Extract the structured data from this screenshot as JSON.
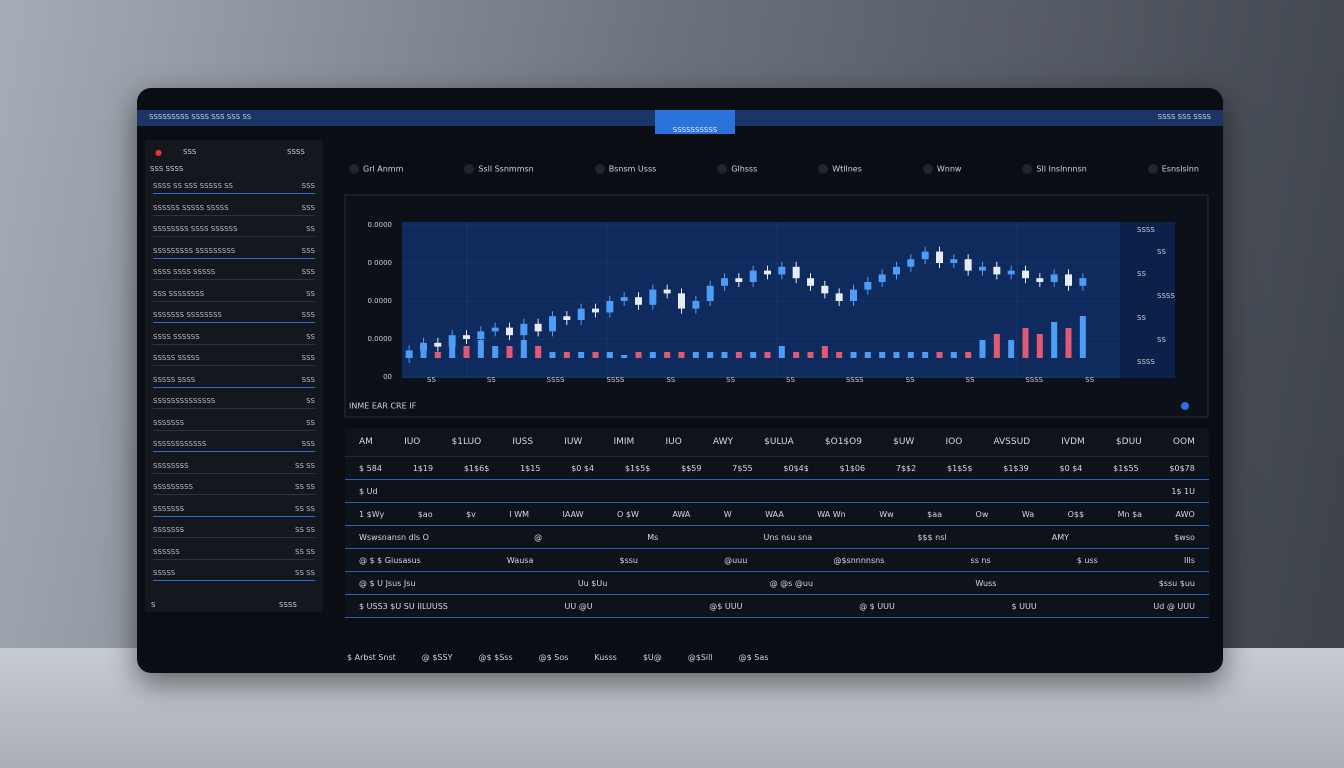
{
  "topbar": {
    "left": "SSSSSSSSS SSSS SSS SSS SS",
    "tab": "SSSSSSSSSS",
    "right": "SSSS SSS SSSS"
  },
  "sidebar": {
    "header": [
      "SSS",
      "SSSS"
    ],
    "subheader": "SSS SSSS",
    "items": [
      {
        "left": "SSSS SS SSS SSSSS SS",
        "right": "SSS"
      },
      {
        "left": "SSSSSS SSSSS SSSSS",
        "right": "SSS"
      },
      {
        "left": "SSSSSSSS SSSS SSSSSS",
        "right": "SS"
      },
      {
        "left": "SSSSSSSSS SSSSSSSSS",
        "right": "SSS"
      },
      {
        "left": "SSSS SSSS SSSSS",
        "right": "SSS"
      },
      {
        "left": "SSS SSSSSSSS",
        "right": "SS"
      },
      {
        "left": "SSSSSSS SSSSSSSS",
        "right": "SSS"
      },
      {
        "left": "SSSS SSSSSS",
        "right": "SS"
      },
      {
        "left": "SSSSS SSSSS",
        "right": "SSS"
      },
      {
        "left": "SSSSS SSSS",
        "right": "SSS"
      },
      {
        "left": "SSSSSSSSSSSSSS",
        "right": "SS"
      },
      {
        "left": "SSSSSSS",
        "right": "SS"
      },
      {
        "left": "SSSSSSSSSSSS",
        "right": "SSS"
      },
      {
        "left": "SSSSSSSS",
        "right": "SS SS"
      },
      {
        "left": "SSSSSSSSS",
        "right": "SS SS"
      },
      {
        "left": "SSSSSSS",
        "right": "SS SS"
      },
      {
        "left": "SSSSSSS",
        "right": "SS SS"
      },
      {
        "left": "SSSSSS",
        "right": "SS SS"
      },
      {
        "left": "SSSSS",
        "right": "SS SS"
      }
    ],
    "footer": [
      "S",
      "SSSS"
    ]
  },
  "toolbar": [
    "Grl Anmm",
    "Ssll Ssnmmsn",
    "Bsnsm Usss",
    "Glhsss",
    "Wtllnes",
    "Wnnw",
    "Sll Inslnnnsn",
    "Esnslslnn"
  ],
  "chart_subtitle": "INME EAR CRE IF",
  "chart_data": {
    "type": "candlestick",
    "ylim": [
      0,
      4
    ],
    "yticks": [
      {
        "value": 0,
        "label": "00"
      },
      {
        "value": 1,
        "label": "0.0000"
      },
      {
        "value": 2,
        "label": "0.0000"
      },
      {
        "value": 3,
        "label": "0 0000"
      },
      {
        "value": 4,
        "label": "0.0000"
      }
    ],
    "right_labels": [
      "SSSS",
      "SS",
      "SS",
      "SSSS",
      "SS",
      "SS",
      "SSSS"
    ],
    "x_labels": [
      "SS",
      "SS",
      "SSSS",
      "SSSS",
      "SS",
      "SS",
      "SS",
      "SSSS",
      "SS",
      "SS",
      "SSSS",
      "SS"
    ],
    "open": [
      0.5,
      0.7,
      0.9,
      0.8,
      1.1,
      1.0,
      1.2,
      1.3,
      1.1,
      1.4,
      1.2,
      1.6,
      1.5,
      1.8,
      1.7,
      2.0,
      2.1,
      1.9,
      2.3,
      2.2,
      1.8,
      2.0,
      2.4,
      2.6,
      2.5,
      2.8,
      2.7,
      2.9,
      2.6,
      2.4,
      2.2,
      2.0,
      2.3,
      2.5,
      2.7,
      2.9,
      3.1,
      3.3,
      3.0,
      3.1,
      2.8,
      2.9,
      2.7,
      2.8,
      2.6,
      2.5,
      2.7,
      2.4
    ],
    "close": [
      0.7,
      0.9,
      0.8,
      1.1,
      1.0,
      1.2,
      1.3,
      1.1,
      1.4,
      1.2,
      1.6,
      1.5,
      1.8,
      1.7,
      2.0,
      2.1,
      1.9,
      2.3,
      2.2,
      1.8,
      2.0,
      2.4,
      2.6,
      2.5,
      2.8,
      2.7,
      2.9,
      2.6,
      2.4,
      2.2,
      2.0,
      2.3,
      2.5,
      2.7,
      2.9,
      3.1,
      3.3,
      3.0,
      3.1,
      2.8,
      2.9,
      2.7,
      2.8,
      2.6,
      2.5,
      2.7,
      2.4,
      2.6
    ],
    "volume": [
      1,
      2,
      1,
      3,
      2,
      3,
      2,
      2,
      3,
      2,
      1,
      1,
      1,
      1,
      1,
      0.5,
      1,
      1,
      1,
      1,
      1,
      1,
      1,
      1,
      1,
      1,
      2,
      1,
      1,
      2,
      1,
      1,
      1,
      1,
      1,
      1,
      1,
      1,
      1,
      1,
      3,
      4,
      3,
      5,
      4,
      6,
      5,
      7
    ],
    "y2lim": [
      0,
      10
    ],
    "up_color": "#4d9cf5",
    "down_color": "#e6ecf5",
    "volume_down_color": "#e05a78"
  },
  "table": {
    "header": [
      "AM",
      "IUO",
      "$1LUO",
      "IUSS",
      "IUW",
      "IMIM",
      "IUO",
      "AWY",
      "$ULUA",
      "$O1$O9",
      "$UW",
      "IOO",
      "AVSSUD",
      "IVDM",
      "$DUU",
      "OOM"
    ],
    "rows": [
      [
        "$ 584",
        "1$19",
        "$1$6$",
        "1$15",
        "$0 $4",
        "$1$5$",
        "$$59",
        "7$55",
        "$0$4$",
        "$1$06",
        "7$$2",
        "$1$5$",
        "$1$39",
        "$0 $4",
        "$1$55",
        "$0$78"
      ],
      [
        "$ Ud",
        "1$ 1U"
      ],
      [
        "1 $Wy",
        "$ao",
        "$v",
        "I WM",
        "IAAW",
        "O $W",
        "AWA",
        "W",
        "WAA",
        "WA Wn",
        "Ww",
        "$aa",
        "Ow",
        "Wa",
        "O$$",
        "Mn $a",
        "AWO"
      ],
      [
        "Wswsnansn dls O",
        "@",
        "Ms",
        "Uns nsu sna",
        "$$$ nsl",
        "AMY",
        "$wso"
      ],
      [
        "@ $ $ Giusasus",
        "Wausa",
        "$ssu",
        "@uuu",
        "@$snnnnsns",
        "ss ns",
        "$ uss",
        "Ills"
      ],
      [
        "@ $ U Jsus Jsu",
        "Uu $Uu",
        "@ @s @uu",
        "Wuss",
        "$ssu $uu"
      ],
      [
        "$ USS3 $U SU IILUUSS",
        "UU @U",
        "@$ UUU",
        "@ $ UUU",
        "$ UUU",
        "Ud @ UUU"
      ]
    ]
  },
  "footer": [
    "$ Arbst Snst",
    "@ $SSY",
    "@$ $Sss",
    "@$ Sos",
    "Kusss",
    "$U@",
    "@$Sill",
    "@$ Sas"
  ]
}
